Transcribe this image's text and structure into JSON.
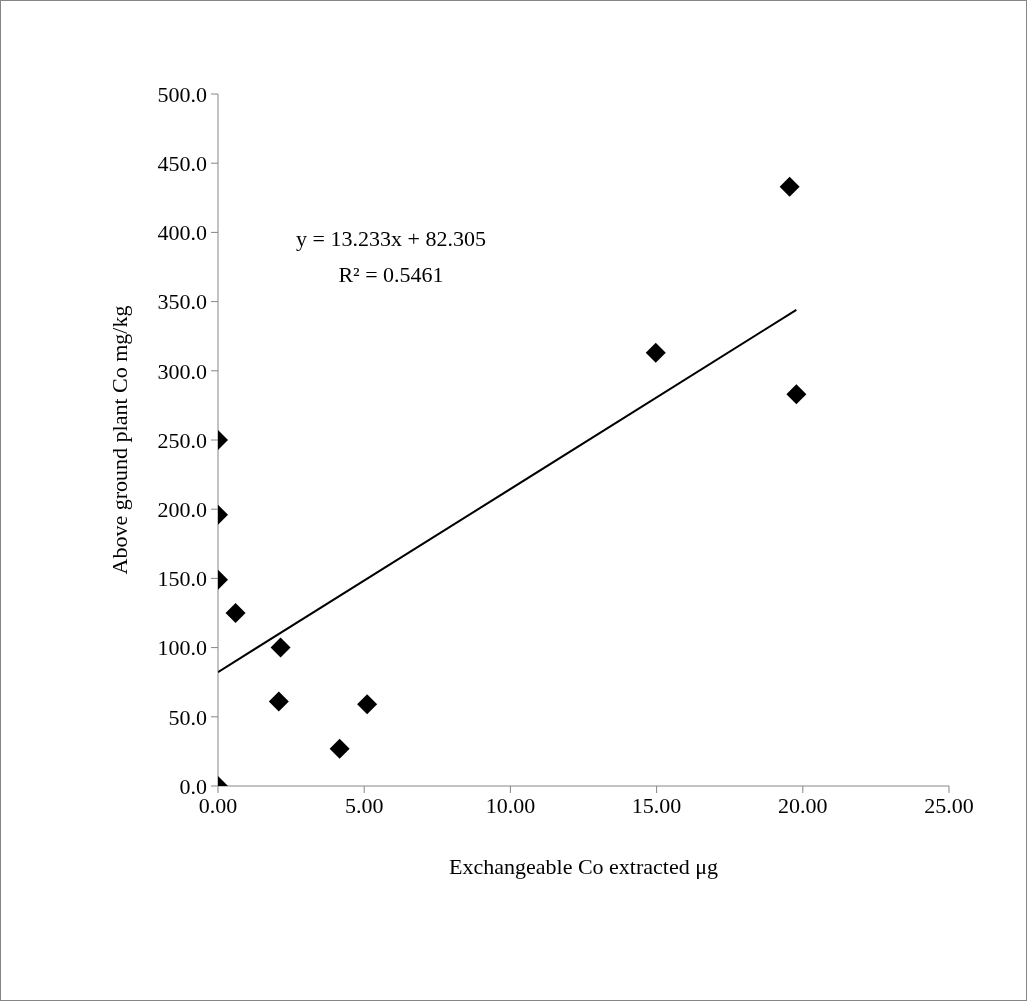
{
  "chart_data": {
    "type": "scatter",
    "xlabel": "Exchangeable Co extracted μg",
    "ylabel": "Above ground plant Co mg/kg",
    "xlim": [
      0,
      25
    ],
    "xticks": [
      {
        "value": 0,
        "label": "0.00"
      },
      {
        "value": 5,
        "label": "5.00"
      },
      {
        "value": 10,
        "label": "10.00"
      },
      {
        "value": 15,
        "label": "15.00"
      },
      {
        "value": 20,
        "label": "20.00"
      },
      {
        "value": 25,
        "label": "25.00"
      }
    ],
    "ylim": [
      0,
      500
    ],
    "yticks": [
      {
        "value": 0,
        "label": "0.0"
      },
      {
        "value": 50,
        "label": "50.0"
      },
      {
        "value": 100,
        "label": "100.0"
      },
      {
        "value": 150,
        "label": "150.0"
      },
      {
        "value": 200,
        "label": "200.0"
      },
      {
        "value": 250,
        "label": "250.0"
      },
      {
        "value": 300,
        "label": "300.0"
      },
      {
        "value": 350,
        "label": "350.0"
      },
      {
        "value": 400,
        "label": "400.0"
      },
      {
        "value": 450,
        "label": "450.0"
      },
      {
        "value": 500,
        "label": "500.0"
      }
    ],
    "grid": false,
    "legend": false,
    "marker": "diamond",
    "series": [
      {
        "color": "#000000",
        "x": [
          0,
          0,
          0,
          0,
          0.6,
          2.14,
          2.08,
          4.16,
          5.1,
          14.97,
          19.55,
          19.78
        ],
        "values": [
          0,
          250,
          196,
          149,
          125,
          100,
          61,
          27,
          59,
          313,
          433,
          283
        ]
      },
      {
        "type": "line",
        "color": "#000000",
        "marker": "none",
        "x": [
          0,
          19.78
        ],
        "values": [
          82.3,
          344
        ]
      }
    ],
    "annotations": [
      "y = 13.233x + 82.305",
      "R² = 0.5461"
    ]
  }
}
